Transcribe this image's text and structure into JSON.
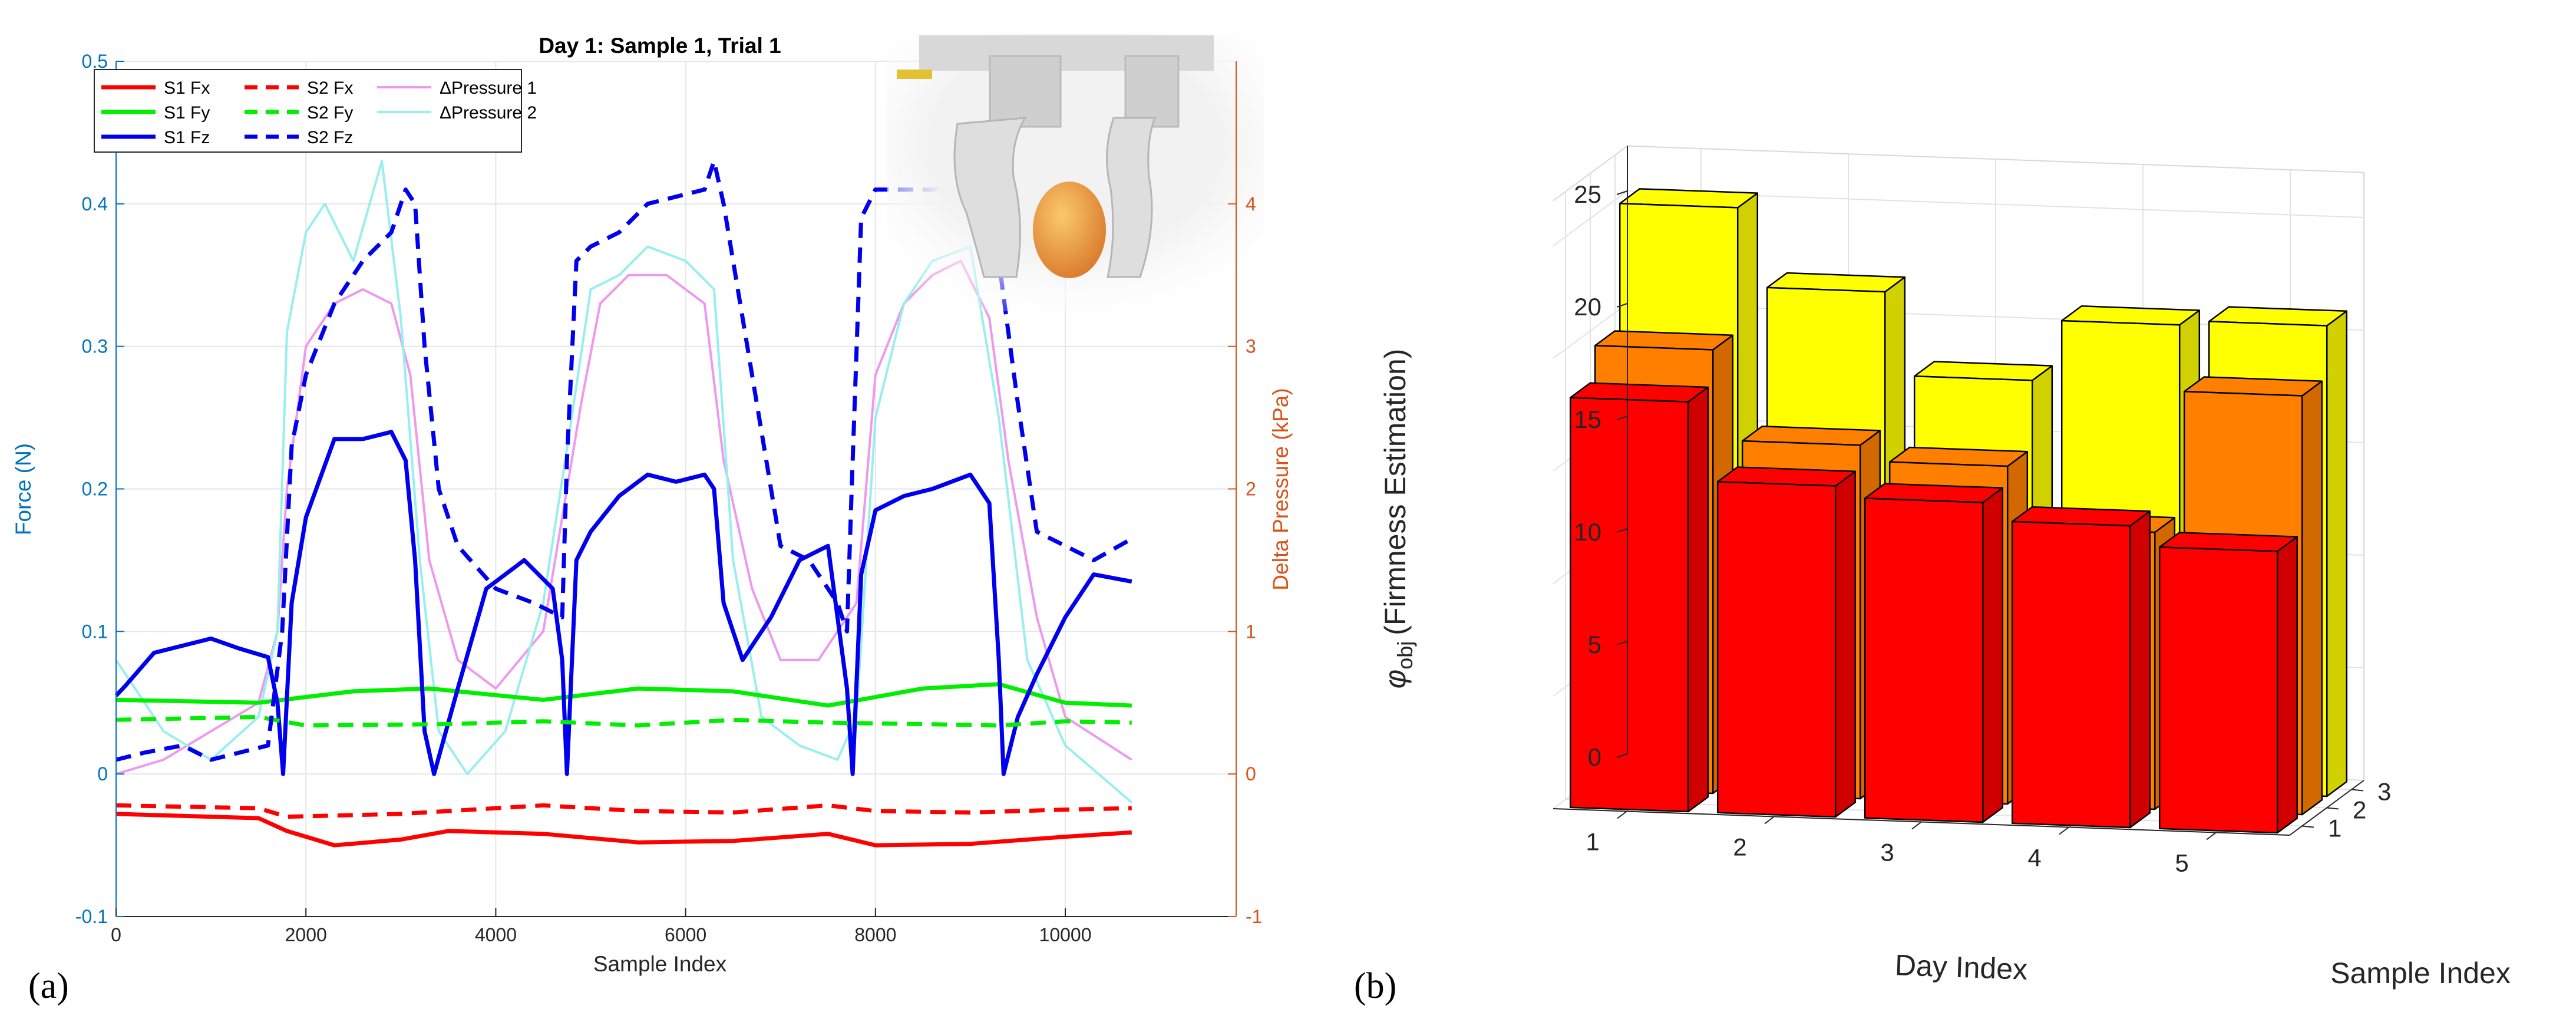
{
  "panel_labels": [
    "(a)",
    "(b)"
  ],
  "chart_data": [
    {
      "type": "line",
      "title": "Day 1: Sample 1, Trial 1",
      "xlabel": "Sample Index",
      "ylabel": "Force (N)",
      "ylabel_right": "Delta Pressure (kPa)",
      "xlim": [
        0,
        11800
      ],
      "ylim": [
        -0.1,
        0.5
      ],
      "ylim_right": [
        -1,
        5
      ],
      "x_ticks": [
        0,
        2000,
        4000,
        6000,
        8000,
        10000
      ],
      "x_tick_labels": [
        "0",
        "2000",
        "4000",
        "6000",
        "8000",
        "10000"
      ],
      "y_ticks": [
        -0.1,
        0,
        0.1,
        0.2,
        0.3,
        0.4,
        0.5
      ],
      "y_tick_labels": [
        "-0.1",
        "0",
        "0.1",
        "0.2",
        "0.3",
        "0.4",
        "0.5"
      ],
      "y_right_ticks": [
        -1,
        0,
        1,
        2,
        3,
        4
      ],
      "y_right_tick_labels": [
        "-1",
        "0",
        "1",
        "2",
        "3",
        "4"
      ],
      "grid": true,
      "legend_position": "top-left",
      "inset_photo": "top-right",
      "colors": {
        "left_axis": "#0072BD",
        "right_axis": "#D95319"
      },
      "series": [
        {
          "name": "S1 Fx",
          "color": "#ff0000",
          "style": "solid",
          "axis": "left",
          "x": [
            0,
            1500,
            1800,
            2300,
            3000,
            3500,
            4500,
            5500,
            6500,
            7500,
            8000,
            9000,
            10000,
            10700
          ],
          "y": [
            -0.028,
            -0.031,
            -0.04,
            -0.05,
            -0.046,
            -0.04,
            -0.042,
            -0.048,
            -0.047,
            -0.042,
            -0.05,
            -0.049,
            -0.044,
            -0.041
          ]
        },
        {
          "name": "S1 Fy",
          "color": "#00ee00",
          "style": "solid",
          "axis": "left",
          "x": [
            0,
            1500,
            2500,
            3300,
            4500,
            5500,
            6500,
            7500,
            8500,
            9300,
            10000,
            10700
          ],
          "y": [
            0.052,
            0.05,
            0.058,
            0.06,
            0.052,
            0.06,
            0.058,
            0.048,
            0.06,
            0.063,
            0.05,
            0.048
          ]
        },
        {
          "name": "S1 Fz",
          "color": "#0000ee",
          "style": "solid",
          "axis": "left",
          "x": [
            0,
            100,
            400,
            700,
            1000,
            1300,
            1600,
            1700,
            1760,
            1850,
            2000,
            2300,
            2600,
            2900,
            3050,
            3150,
            3250,
            3350,
            3600,
            3900,
            4300,
            4600,
            4700,
            4750,
            4850,
            5000,
            5300,
            5600,
            5900,
            6200,
            6300,
            6400,
            6600,
            6900,
            7200,
            7500,
            7700,
            7760,
            7850,
            8000,
            8300,
            8600,
            9000,
            9200,
            9300,
            9350,
            9500,
            9700,
            10000,
            10300,
            10700
          ],
          "y": [
            0.055,
            0.062,
            0.085,
            0.09,
            0.095,
            0.088,
            0.082,
            0.05,
            0.0,
            0.12,
            0.18,
            0.235,
            0.235,
            0.24,
            0.22,
            0.15,
            0.03,
            0.0,
            0.06,
            0.13,
            0.15,
            0.13,
            0.08,
            0.0,
            0.15,
            0.17,
            0.195,
            0.21,
            0.205,
            0.21,
            0.2,
            0.12,
            0.08,
            0.11,
            0.15,
            0.16,
            0.06,
            0.0,
            0.14,
            0.185,
            0.195,
            0.2,
            0.21,
            0.19,
            0.08,
            0.0,
            0.04,
            0.07,
            0.11,
            0.14,
            0.135
          ]
        },
        {
          "name": "S2 Fx",
          "color": "#ff0000",
          "style": "dashed",
          "axis": "left",
          "x": [
            0,
            1500,
            1800,
            3000,
            4500,
            5500,
            6500,
            7500,
            8000,
            9000,
            10000,
            10700
          ],
          "y": [
            -0.022,
            -0.024,
            -0.03,
            -0.028,
            -0.022,
            -0.026,
            -0.027,
            -0.022,
            -0.026,
            -0.027,
            -0.025,
            -0.024
          ]
        },
        {
          "name": "S2 Fy",
          "color": "#00ee00",
          "style": "dashed",
          "axis": "left",
          "x": [
            0,
            1500,
            2000,
            3500,
            4500,
            5500,
            6500,
            7500,
            8500,
            9300,
            10000,
            10700
          ],
          "y": [
            0.038,
            0.04,
            0.034,
            0.035,
            0.037,
            0.034,
            0.038,
            0.036,
            0.035,
            0.034,
            0.037,
            0.036
          ]
        },
        {
          "name": "S2 Fz",
          "color": "#0000ee",
          "style": "dashed",
          "axis": "left",
          "x": [
            0,
            300,
            700,
            1000,
            1300,
            1600,
            1750,
            1850,
            2000,
            2300,
            2600,
            2900,
            3050,
            3150,
            3250,
            3400,
            3600,
            4000,
            4400,
            4700,
            4750,
            4850,
            5000,
            5300,
            5600,
            5900,
            6200,
            6300,
            6400,
            6700,
            7000,
            7300,
            7600,
            7700,
            7750,
            7850,
            8000,
            8300,
            8600,
            9000,
            9200,
            9300,
            9500,
            9700,
            10000,
            10300,
            10700
          ],
          "y": [
            0.01,
            0.015,
            0.02,
            0.01,
            0.015,
            0.02,
            0.1,
            0.23,
            0.28,
            0.33,
            0.36,
            0.38,
            0.41,
            0.4,
            0.3,
            0.2,
            0.16,
            0.13,
            0.12,
            0.11,
            0.22,
            0.36,
            0.37,
            0.38,
            0.4,
            0.405,
            0.41,
            0.43,
            0.4,
            0.28,
            0.16,
            0.15,
            0.12,
            0.1,
            0.2,
            0.39,
            0.41,
            0.41,
            0.41,
            0.415,
            0.4,
            0.36,
            0.26,
            0.17,
            0.16,
            0.15,
            0.165
          ]
        },
        {
          "name": "ΔPressure 1",
          "color": "#ee99ee",
          "style": "solid",
          "axis": "right",
          "x": [
            0,
            500,
            1000,
            1500,
            1700,
            1800,
            2000,
            2300,
            2600,
            2900,
            3100,
            3300,
            3600,
            4000,
            4500,
            4900,
            5100,
            5400,
            5800,
            6200,
            6400,
            6700,
            7000,
            7400,
            7800,
            8000,
            8300,
            8600,
            8900,
            9200,
            9400,
            9700,
            10000,
            10700
          ],
          "y": [
            0.0,
            0.1,
            0.3,
            0.5,
            1.0,
            2.0,
            3.0,
            3.3,
            3.4,
            3.3,
            2.8,
            1.5,
            0.8,
            0.6,
            1.0,
            2.6,
            3.3,
            3.5,
            3.5,
            3.3,
            2.2,
            1.3,
            0.8,
            0.8,
            1.2,
            2.8,
            3.3,
            3.5,
            3.6,
            3.2,
            2.2,
            1.1,
            0.4,
            0.1
          ]
        },
        {
          "name": "ΔPressure 2",
          "color": "#99eeee",
          "style": "solid",
          "axis": "right",
          "x": [
            0,
            500,
            1000,
            1500,
            1700,
            1800,
            2000,
            2200,
            2500,
            2800,
            3000,
            3200,
            3400,
            3700,
            4100,
            4500,
            4800,
            5000,
            5300,
            5600,
            6000,
            6300,
            6500,
            6800,
            7200,
            7600,
            7800,
            8000,
            8300,
            8600,
            9000,
            9300,
            9600,
            10000,
            10700
          ],
          "y": [
            0.8,
            0.3,
            0.1,
            0.4,
            1.0,
            3.1,
            3.8,
            4.0,
            3.6,
            4.3,
            3.2,
            1.5,
            0.3,
            0.0,
            0.3,
            1.2,
            2.5,
            3.4,
            3.5,
            3.7,
            3.6,
            3.4,
            1.5,
            0.4,
            0.2,
            0.1,
            0.4,
            2.5,
            3.3,
            3.6,
            3.7,
            2.5,
            0.8,
            0.2,
            -0.2
          ]
        }
      ]
    },
    {
      "type": "bar3d",
      "xlabel": "Day Index",
      "ylabel": "Sample Index",
      "zlabel_symbol": "φ",
      "zlabel_subscript": "obj",
      "zlabel_text": "(Firmness Estimation)",
      "categories": [
        "1",
        "2",
        "3",
        "4",
        "5"
      ],
      "sample_categories": [
        "1",
        "2",
        "3"
      ],
      "zlim": [
        0,
        25
      ],
      "z_ticks": [
        0,
        5,
        10,
        15,
        20,
        25
      ],
      "z_tick_labels": [
        "0",
        "5",
        "10",
        "15",
        "20",
        "25"
      ],
      "grid": true,
      "series": [
        {
          "name": "1",
          "color": "#ff0000",
          "values": [
            18.2,
            14.7,
            14.2,
            13.4,
            12.5
          ]
        },
        {
          "name": "2",
          "color": "#ff8000",
          "values": [
            19.7,
            15.7,
            15.0,
            12.3,
            18.6
          ]
        },
        {
          "name": "3",
          "color": "#ffff00",
          "values": [
            25.2,
            21.7,
            18.0,
            20.7,
            20.9
          ]
        }
      ]
    }
  ]
}
